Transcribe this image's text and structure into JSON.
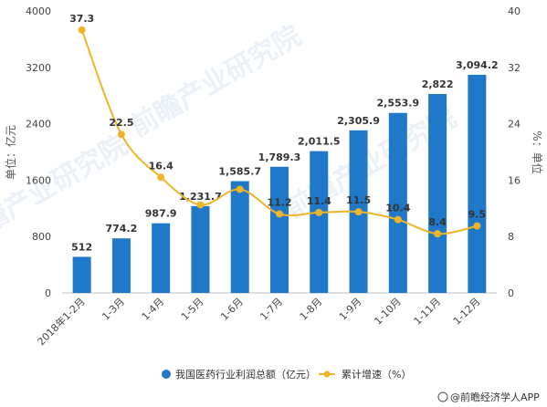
{
  "chart_data": {
    "type": "bar+line",
    "categories": [
      "2018年1-2月",
      "1-3月",
      "1-4月",
      "1-5月",
      "1-6月",
      "1-7月",
      "1-8月",
      "1-9月",
      "1-10月",
      "1-11月",
      "1-12月"
    ],
    "series": [
      {
        "name": "我国医药行业利润总额（亿元）",
        "type": "bar",
        "axis": "left",
        "values": [
          512,
          774.2,
          987.9,
          1231.7,
          1585.7,
          1789.3,
          2011.5,
          2305.9,
          2553.9,
          2822,
          3094.2
        ],
        "labels": [
          "512",
          "774.2",
          "987.9",
          "1,231.7",
          "1,585.7",
          "1,789.3",
          "2,011.5",
          "2,305.9",
          "2,553.9",
          "2,822",
          "3,094.2"
        ],
        "color": "#1f78c8"
      },
      {
        "name": "累计增速（%）",
        "type": "line",
        "axis": "right",
        "values": [
          37.3,
          22.5,
          16.4,
          12.5,
          14.7,
          11.2,
          11.4,
          11.5,
          10.4,
          8.4,
          9.5
        ],
        "labels": [
          "37.3",
          "22.5",
          "16.4",
          "",
          "",
          "11.2",
          "11.4",
          "11.5",
          "10.4",
          "8.4",
          "9.5"
        ],
        "color": "#f0b429"
      }
    ],
    "ylabel_left": "单位：亿元",
    "ylabel_right": "%：单位",
    "ylim_left": [
      0,
      4000
    ],
    "yticks_left": [
      "0",
      "800",
      "1600",
      "2400",
      "3200",
      "4000"
    ],
    "ylim_right": [
      0,
      40
    ],
    "yticks_right": [
      "0",
      "8",
      "16",
      "24",
      "32",
      "40"
    ],
    "legend_position": "bottom",
    "grid": false
  },
  "footer": {
    "source": "@前瞻经济学人APP"
  },
  "watermark": "前瞻产业研究院"
}
